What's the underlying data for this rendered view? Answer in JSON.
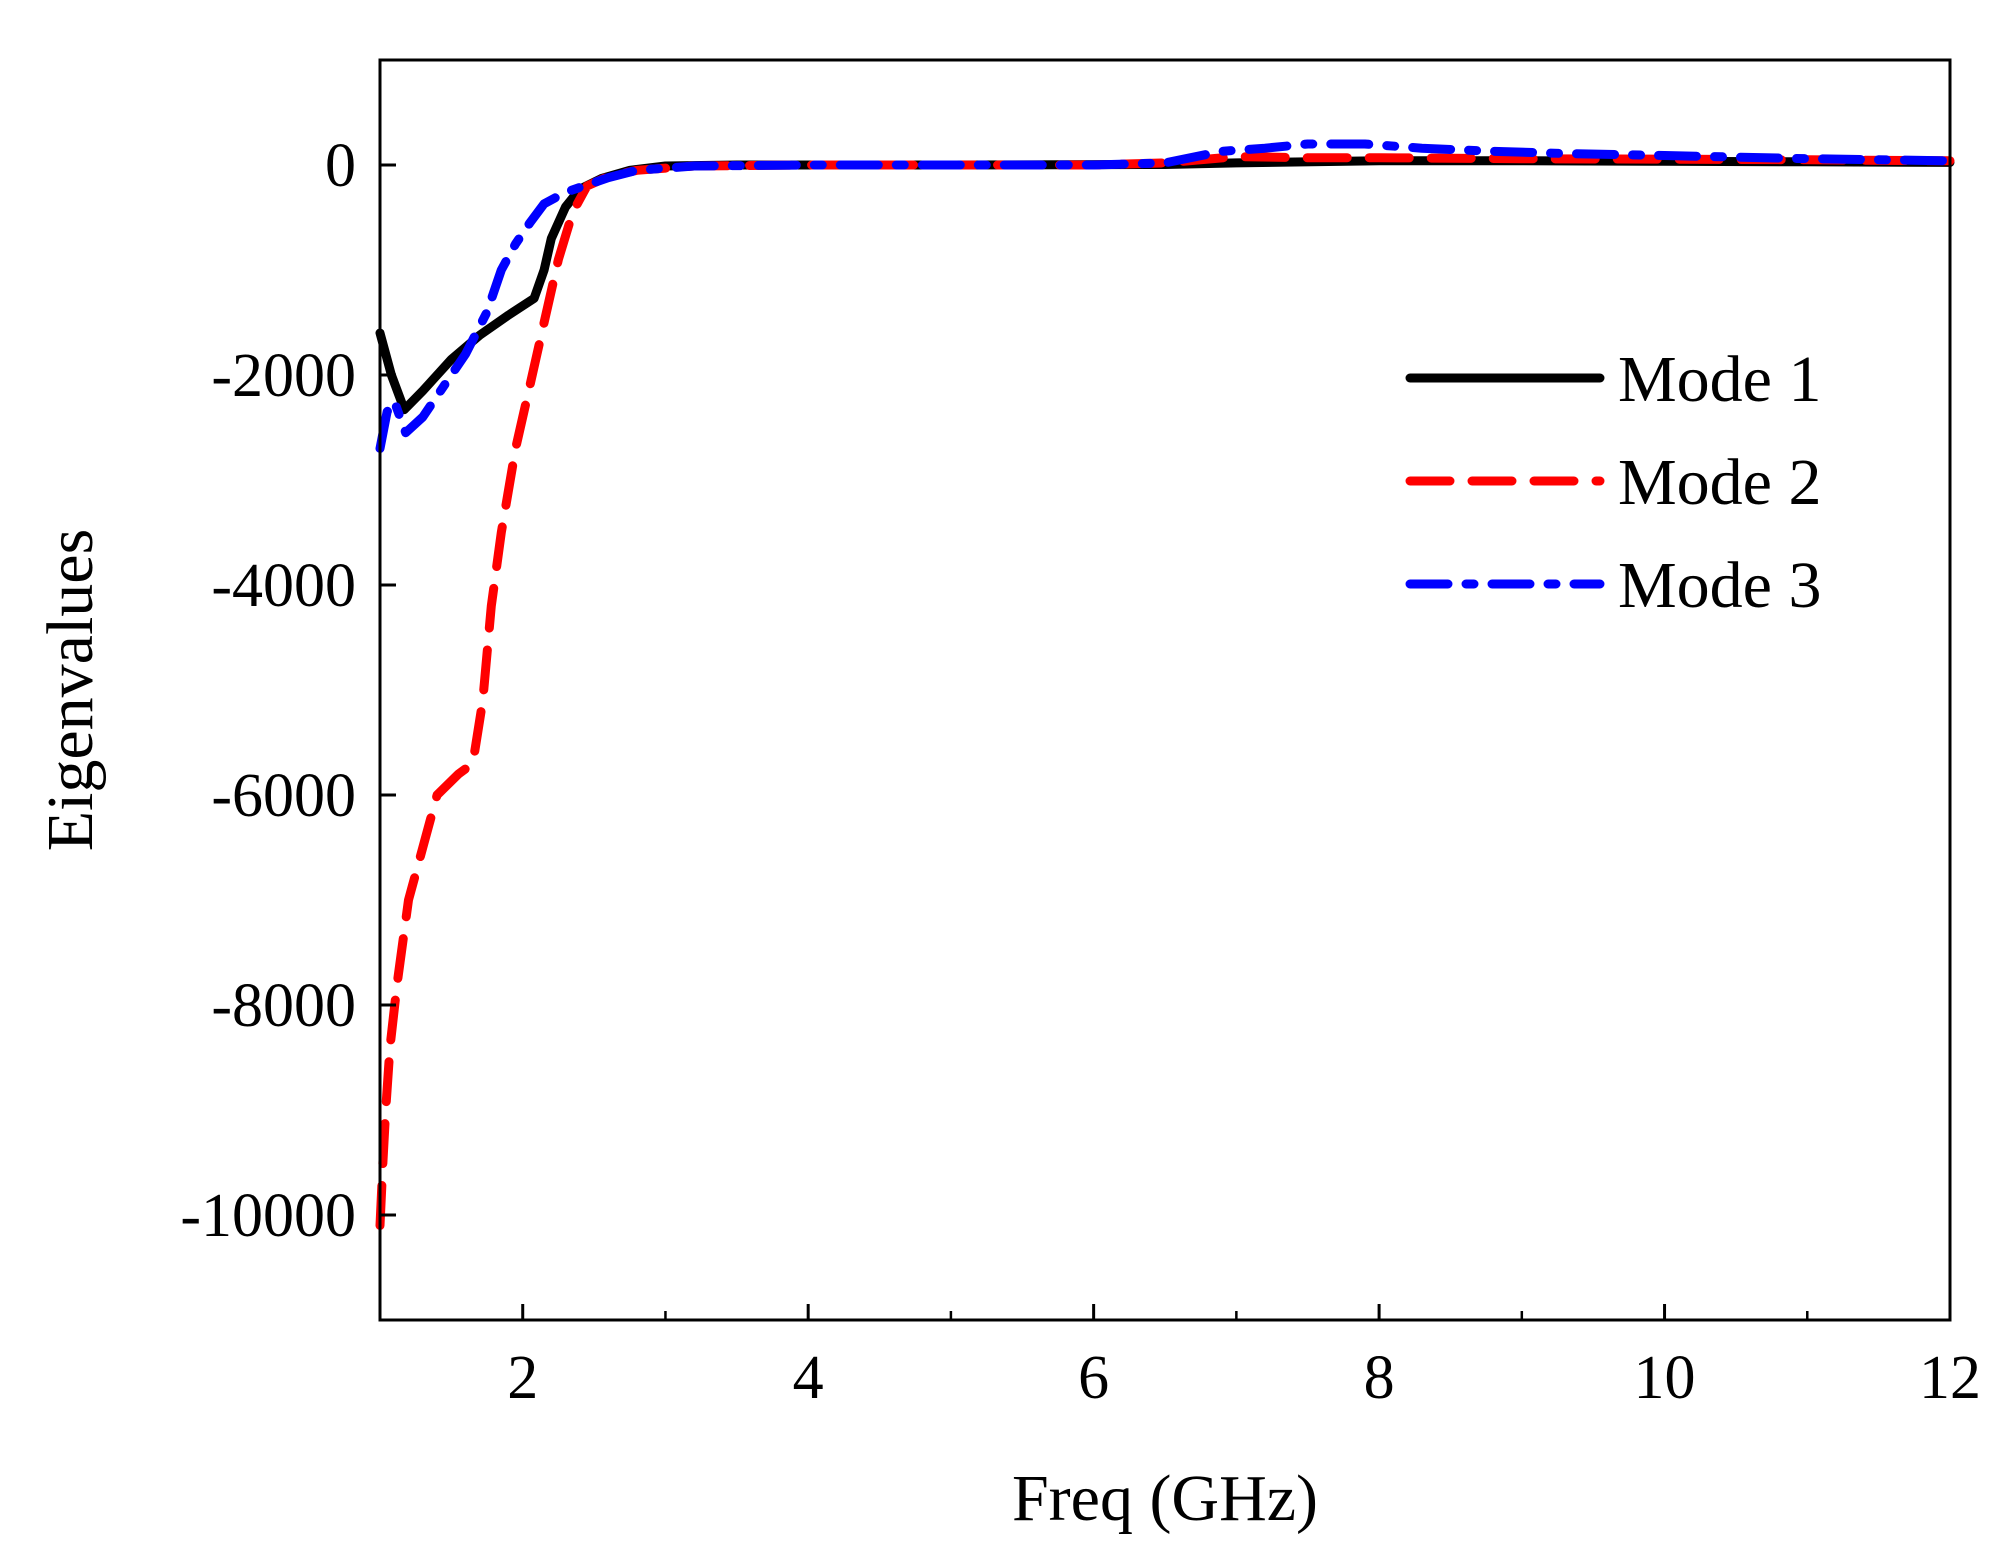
{
  "chart_data": {
    "type": "line",
    "title": "",
    "xlabel": "Freq (GHz)",
    "ylabel": "Eigenvalues",
    "xlim": [
      1,
      12
    ],
    "ylim": [
      -11000,
      1000
    ],
    "xticks": [
      2,
      4,
      6,
      8,
      10,
      12
    ],
    "xtick_labels": [
      "2",
      "4",
      "6",
      "8",
      "10",
      "12"
    ],
    "yticks": [
      0,
      -2000,
      -4000,
      -6000,
      -8000,
      -10000
    ],
    "ytick_labels": [
      "0",
      "-2000",
      "-4000",
      "-6000",
      "-8000",
      "-10000"
    ],
    "grid": false,
    "legend_position": "right",
    "series": [
      {
        "name": "Mode 1",
        "color": "#000000",
        "style": "solid",
        "points": [
          [
            1.0,
            -1600
          ],
          [
            1.08,
            -2000
          ],
          [
            1.17,
            -2330
          ],
          [
            1.3,
            -2150
          ],
          [
            1.5,
            -1850
          ],
          [
            1.7,
            -1620
          ],
          [
            1.9,
            -1430
          ],
          [
            2.08,
            -1270
          ],
          [
            2.15,
            -1000
          ],
          [
            2.2,
            -700
          ],
          [
            2.3,
            -400
          ],
          [
            2.4,
            -230
          ],
          [
            2.55,
            -130
          ],
          [
            2.75,
            -50
          ],
          [
            3.0,
            -10
          ],
          [
            3.5,
            0
          ],
          [
            5,
            0
          ],
          [
            6.5,
            5
          ],
          [
            7,
            20
          ],
          [
            8,
            40
          ],
          [
            9,
            40
          ],
          [
            10,
            35
          ],
          [
            11,
            30
          ],
          [
            12,
            25
          ]
        ]
      },
      {
        "name": "Mode 2",
        "color": "#ff0000",
        "style": "dashed",
        "points": [
          [
            1.0,
            -10100
          ],
          [
            1.02,
            -9500
          ],
          [
            1.04,
            -9000
          ],
          [
            1.07,
            -8400
          ],
          [
            1.12,
            -7800
          ],
          [
            1.2,
            -7000
          ],
          [
            1.3,
            -6500
          ],
          [
            1.4,
            -6000
          ],
          [
            1.55,
            -5800
          ],
          [
            1.65,
            -5700
          ],
          [
            1.72,
            -5100
          ],
          [
            1.78,
            -4200
          ],
          [
            1.85,
            -3500
          ],
          [
            1.95,
            -2700
          ],
          [
            2.05,
            -2100
          ],
          [
            2.15,
            -1500
          ],
          [
            2.25,
            -900
          ],
          [
            2.35,
            -450
          ],
          [
            2.45,
            -200
          ],
          [
            2.6,
            -110
          ],
          [
            2.8,
            -50
          ],
          [
            3.2,
            -10
          ],
          [
            4,
            0
          ],
          [
            5,
            0
          ],
          [
            6,
            0
          ],
          [
            6.5,
            20
          ],
          [
            7,
            80
          ],
          [
            7.5,
            70
          ],
          [
            8,
            70
          ],
          [
            9,
            60
          ],
          [
            10,
            55
          ],
          [
            11,
            50
          ],
          [
            12,
            40
          ]
        ]
      },
      {
        "name": "Mode 3",
        "color": "#0000ff",
        "style": "dashdot",
        "points": [
          [
            1.0,
            -2700
          ],
          [
            1.05,
            -2350
          ],
          [
            1.1,
            -2250
          ],
          [
            1.18,
            -2550
          ],
          [
            1.3,
            -2400
          ],
          [
            1.45,
            -2100
          ],
          [
            1.6,
            -1800
          ],
          [
            1.75,
            -1400
          ],
          [
            1.85,
            -1000
          ],
          [
            1.95,
            -750
          ],
          [
            2.05,
            -550
          ],
          [
            2.15,
            -370
          ],
          [
            2.3,
            -260
          ],
          [
            2.45,
            -190
          ],
          [
            2.6,
            -120
          ],
          [
            2.8,
            -50
          ],
          [
            3.2,
            -10
          ],
          [
            4,
            0
          ],
          [
            5,
            0
          ],
          [
            6,
            0
          ],
          [
            6.5,
            20
          ],
          [
            6.9,
            130
          ],
          [
            7.2,
            160
          ],
          [
            7.5,
            200
          ],
          [
            7.9,
            200
          ],
          [
            8.3,
            160
          ],
          [
            8.8,
            130
          ],
          [
            9.3,
            110
          ],
          [
            10,
            90
          ],
          [
            11,
            60
          ],
          [
            12,
            40
          ]
        ]
      }
    ]
  }
}
